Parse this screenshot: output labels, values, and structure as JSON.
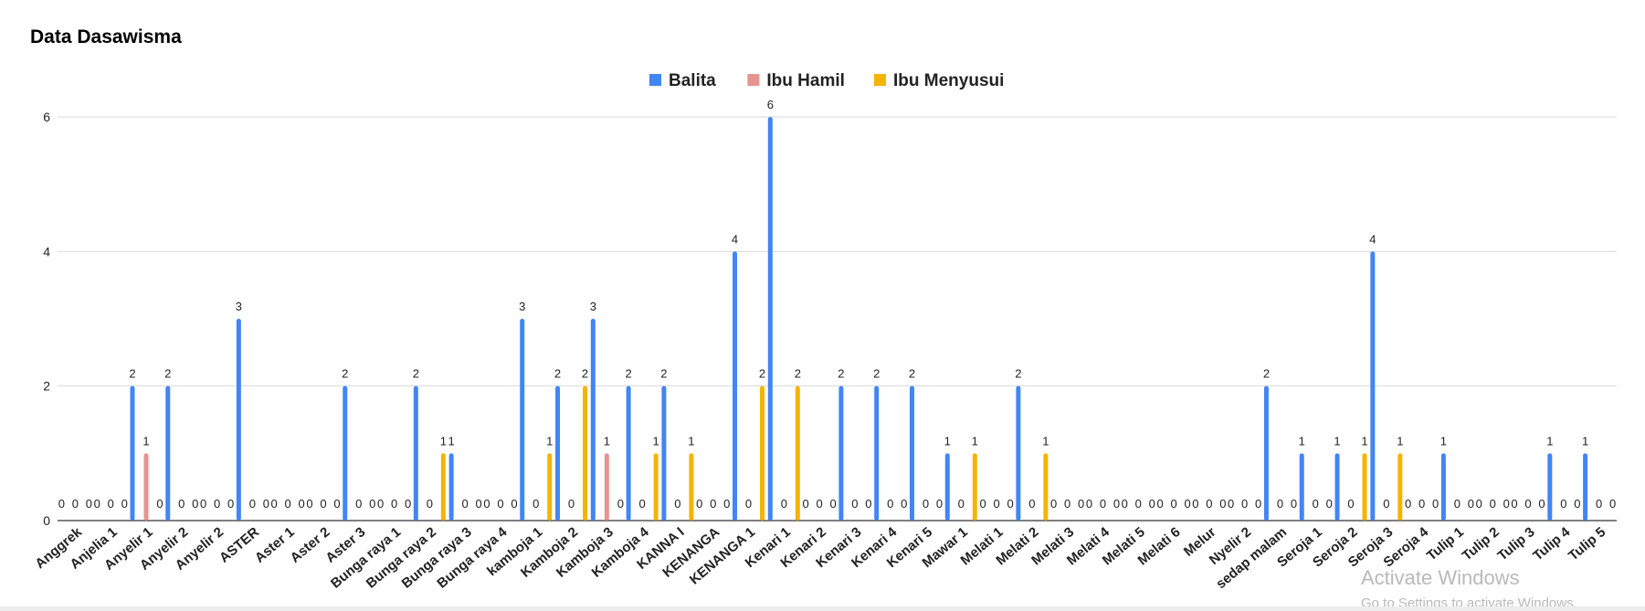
{
  "title": "Data Dasawisma",
  "colors": {
    "Balita": "#4285f4",
    "Ibu Hamil": "#e8938f",
    "Ibu Menyusui": "#f4b400",
    "grid": "#d9d9d9",
    "axis": "#333333"
  },
  "chart_data": {
    "type": "bar",
    "title": "Data Dasawisma",
    "xlabel": "",
    "ylabel": "",
    "ylim": [
      0,
      6
    ],
    "yticks": [
      0,
      2,
      4,
      6
    ],
    "grid": true,
    "legend_position": "top-center",
    "categories": [
      "Anggrek",
      "Anjelia 1",
      "Anyelir 1",
      "Anyelir 2",
      "Anyelir 2",
      "ASTER",
      "Aster 1",
      "Aster 2",
      "Aster 3",
      "Bunga raya 1",
      "Bunga raya 2",
      "Bunga raya 3",
      "Bunga raya 4",
      "kamboja 1",
      "Kamboja 2",
      "Kamboja 3",
      "Kamboja 4",
      "KANNA I",
      "KENANGA",
      "KENANGA 1",
      "Kenari 1",
      "Kenari 2",
      "Kenari 3",
      "Kenari 4",
      "Kenari 5",
      "Mawar 1",
      "Melati 1",
      "Melati 2",
      "Melati 3",
      "Melati 4",
      "Melati 5",
      "Melati 6",
      "Melur",
      "Nyelir 2",
      "sedap malam",
      "Seroja 1",
      "Seroja 2",
      "Seroja 3",
      "Seroja 4",
      "Tulip 1",
      "Tulip 2",
      "Tulip 3",
      "Tulip 4",
      "Tulip 5"
    ],
    "series": [
      {
        "name": "Balita",
        "values": [
          0,
          0,
          2,
          2,
          0,
          3,
          0,
          0,
          2,
          0,
          2,
          1,
          0,
          3,
          2,
          3,
          2,
          2,
          0,
          4,
          6,
          0,
          2,
          2,
          2,
          1,
          0,
          2,
          0,
          0,
          0,
          0,
          0,
          0,
          2,
          1,
          1,
          4,
          0,
          1,
          0,
          0,
          1,
          1
        ]
      },
      {
        "name": "Ibu Hamil",
        "values": [
          0,
          0,
          1,
          0,
          0,
          0,
          0,
          0,
          0,
          0,
          0,
          0,
          0,
          0,
          0,
          1,
          0,
          0,
          0,
          0,
          0,
          0,
          0,
          0,
          0,
          0,
          0,
          0,
          0,
          0,
          0,
          0,
          0,
          0,
          0,
          0,
          0,
          0,
          0,
          0,
          0,
          0,
          0,
          0
        ]
      },
      {
        "name": "Ibu Menyusui",
        "values": [
          0,
          0,
          0,
          0,
          0,
          0,
          0,
          0,
          0,
          0,
          1,
          0,
          0,
          1,
          2,
          0,
          1,
          1,
          0,
          2,
          2,
          0,
          0,
          0,
          0,
          1,
          0,
          1,
          0,
          0,
          0,
          0,
          0,
          0,
          0,
          0,
          1,
          1,
          0,
          0,
          0,
          0,
          0,
          0
        ]
      }
    ]
  },
  "watermark": {
    "title": "Activate Windows",
    "subtitle": "Go to Settings to activate Windows."
  }
}
